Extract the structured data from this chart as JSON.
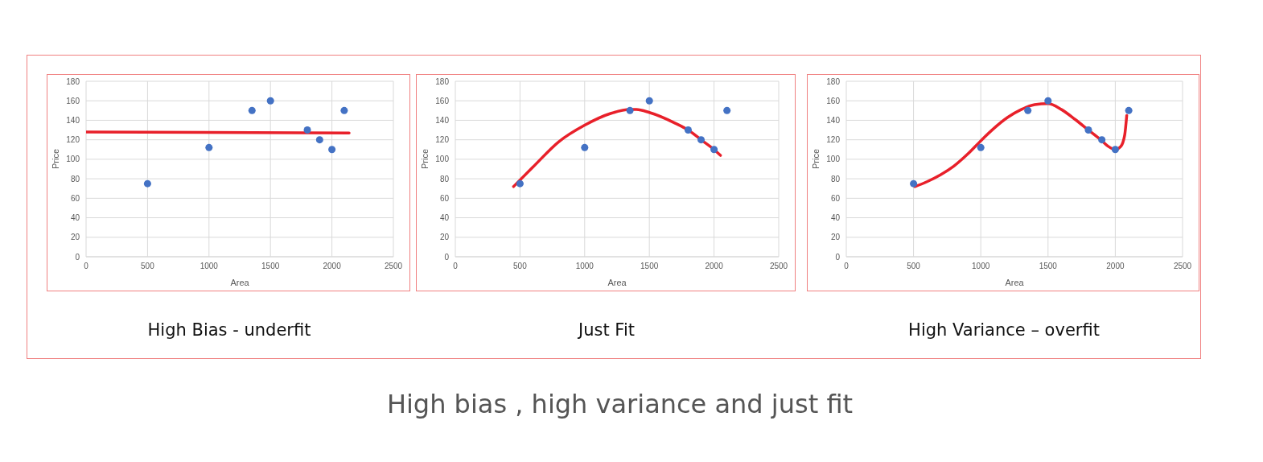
{
  "chart_data": [
    {
      "type": "scatter",
      "title": "High Bias - underfit",
      "xlabel": "Area",
      "ylabel": "Price",
      "xlim": [
        0,
        2500
      ],
      "xticks": [
        0,
        500,
        1000,
        1500,
        2000,
        2500
      ],
      "ylim": [
        0,
        180
      ],
      "yticks": [
        0,
        20,
        40,
        60,
        80,
        100,
        120,
        140,
        160,
        180
      ],
      "grid": true,
      "legend": false,
      "series": [
        {
          "type": "scatter",
          "color": "#4472c4",
          "marker": "circle",
          "x": [
            500,
            1000,
            1350,
            1500,
            1800,
            1900,
            2000,
            2100
          ],
          "values": [
            75,
            112,
            150,
            160,
            130,
            120,
            110,
            150
          ]
        },
        {
          "type": "line",
          "color": "#e8202a",
          "marker": "none",
          "x": [
            0,
            2140
          ],
          "values": [
            128,
            127
          ]
        }
      ]
    },
    {
      "type": "scatter",
      "title": "Just Fit",
      "xlabel": "Area",
      "ylabel": "Price",
      "xlim": [
        0,
        2500
      ],
      "xticks": [
        0,
        500,
        1000,
        1500,
        2000,
        2500
      ],
      "ylim": [
        0,
        180
      ],
      "yticks": [
        0,
        20,
        40,
        60,
        80,
        100,
        120,
        140,
        160,
        180
      ],
      "grid": true,
      "legend": false,
      "annotations": [
        "High bias , high variance and just fit"
      ],
      "series": [
        {
          "type": "scatter",
          "color": "#4472c4",
          "marker": "circle",
          "x": [
            500,
            1000,
            1350,
            1500,
            1800,
            1900,
            2000,
            2100
          ],
          "values": [
            75,
            112,
            150,
            160,
            130,
            120,
            110,
            150
          ]
        },
        {
          "type": "line",
          "color": "#e8202a",
          "marker": "none",
          "x": [
            450,
            600,
            800,
            1000,
            1200,
            1350,
            1400,
            1500,
            1700,
            1800,
            1900,
            2000,
            2050
          ],
          "values": [
            72,
            92,
            118,
            135,
            147,
            151,
            151,
            148,
            137,
            130,
            120,
            110,
            104
          ]
        }
      ]
    },
    {
      "type": "scatter",
      "title": "High Variance – overfit",
      "xlabel": "Area",
      "ylabel": "Price",
      "xlim": [
        0,
        2500
      ],
      "xticks": [
        0,
        500,
        1000,
        1500,
        2000,
        2500
      ],
      "ylim": [
        0,
        180
      ],
      "yticks": [
        0,
        20,
        40,
        60,
        80,
        100,
        120,
        140,
        160,
        180
      ],
      "grid": true,
      "legend": false,
      "series": [
        {
          "type": "scatter",
          "color": "#4472c4",
          "marker": "circle",
          "x": [
            500,
            1000,
            1350,
            1500,
            1800,
            1900,
            2000,
            2100
          ],
          "values": [
            75,
            112,
            150,
            160,
            130,
            120,
            110,
            150
          ]
        },
        {
          "type": "line",
          "color": "#e8202a",
          "marker": "none",
          "x": [
            510,
            600,
            700,
            800,
            900,
            1000,
            1100,
            1200,
            1300,
            1400,
            1500,
            1600,
            1700,
            1800,
            1900,
            1950,
            2000,
            2040,
            2070,
            2085
          ],
          "values": [
            72,
            77,
            84,
            93,
            105,
            119,
            132,
            143,
            151,
            156,
            157,
            151,
            141,
            130,
            119,
            113,
            110,
            113,
            125,
            145
          ]
        }
      ]
    }
  ]
}
